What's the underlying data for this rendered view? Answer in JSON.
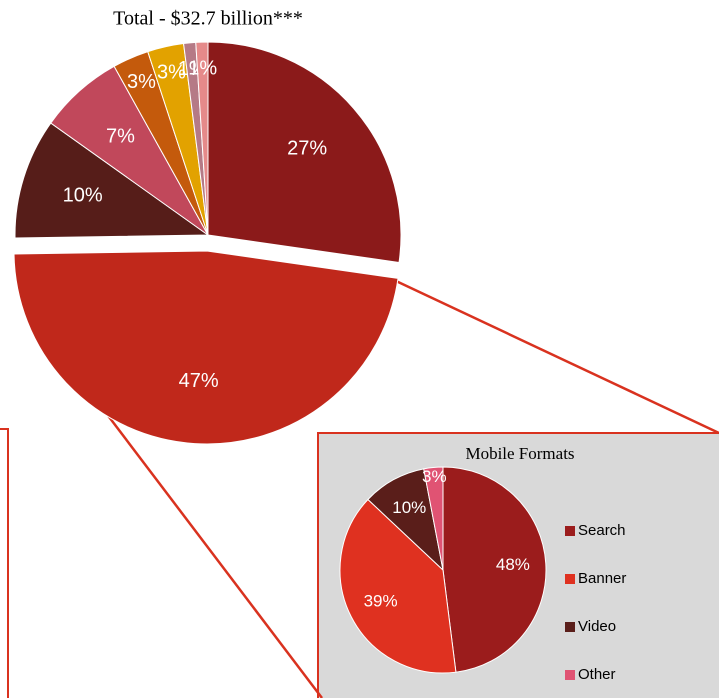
{
  "chart_data": [
    {
      "type": "pie",
      "title": "Total - $32.7 billion***",
      "values": [
        27,
        47,
        10,
        7,
        3,
        3,
        1,
        1
      ],
      "value_labels": [
        "27%",
        "47%",
        "10%",
        "7%",
        "3%",
        "3%",
        "1%",
        "1%"
      ],
      "colors": [
        "#8b1a1a",
        "#c0281b",
        "#561d19",
        "#c1485b",
        "#c45a0c",
        "#e2a200",
        "#b57a86",
        "#e58a8a"
      ]
    },
    {
      "type": "pie",
      "title": "Mobile Formats",
      "categories": [
        "Search",
        "Banner",
        "Video",
        "Other"
      ],
      "values": [
        48,
        39,
        10,
        3
      ],
      "value_labels": [
        "48%",
        "39%",
        "10%",
        "3%"
      ],
      "colors": [
        "#9b1c1c",
        "#df3120",
        "#5a1e1a",
        "#e05373"
      ],
      "legend": "right"
    }
  ]
}
